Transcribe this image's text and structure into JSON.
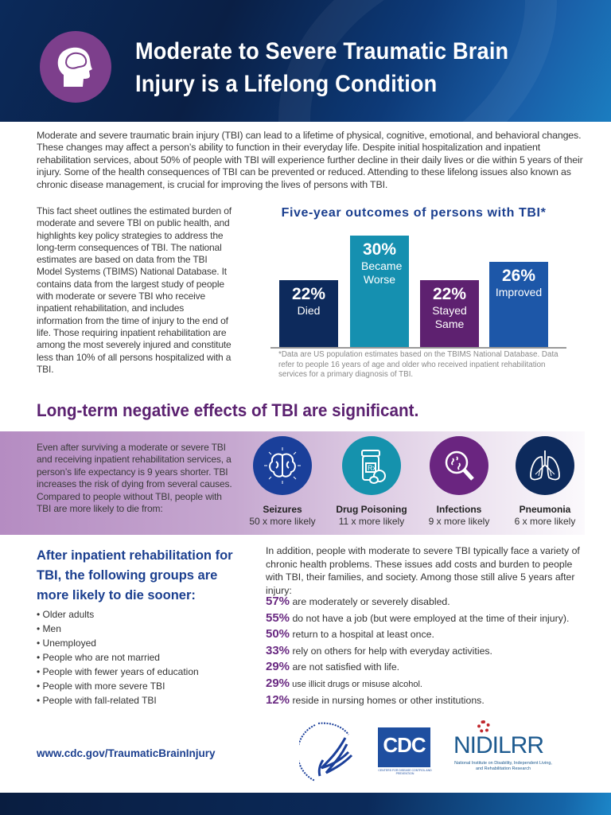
{
  "header": {
    "title_line1": "Moderate to Severe Traumatic Brain",
    "title_line2": "Injury is a Lifelong Condition",
    "icon": "head-brain-icon"
  },
  "intro": "Moderate and severe traumatic brain injury (TBI) can lead to a lifetime of physical, cognitive, emotional, and behavioral changes. These changes may affect a person’s ability to function in their everyday life. Despite initial hospitalization and inpatient rehabilitation services, about 50% of people with TBI will experience further decline in their daily lives or die within 5 years of their injury. Some of the health consequences of TBI can be prevented or reduced. Attending to these lifelong issues also known as chronic disease management, is crucial for improving the lives of persons with TBI.",
  "left_column": "This fact sheet outlines the estimated burden of moderate and severe TBI on public health, and highlights key policy strategies to address the long-term consequences of TBI. The national estimates are based on data from the TBI Model Systems (TBIMS) National Database. It contains data from the largest study of people with moderate or severe TBI who receive inpatient rehabilitation, and includes information from the time of injury to the end of life. Those requiring inpatient rehabilitation are among the most severely injured and constitute less than 10% of all persons hospitalized with a TBI.",
  "chart_data": {
    "type": "bar",
    "title": "Five-year outcomes of persons with TBI*",
    "categories": [
      "Died",
      "Became Worse",
      "Stayed Same",
      "Improved"
    ],
    "values": [
      22,
      30,
      22,
      26
    ],
    "value_labels": [
      "22%",
      "30%",
      "22%",
      "26%"
    ],
    "colors": [
      "#0d2a5c",
      "#1590b0",
      "#5e2170",
      "#1d57a8"
    ],
    "ylim": [
      0,
      30
    ],
    "footnote": "*Data are US population estimates based on the TBIMS National Database. Data refer to people 16 years of age and older who received inpatient rehabilitation services for a primary diagnosis of TBI."
  },
  "long_term": {
    "heading": "Long-term negative effects of TBI are significant.",
    "text": "Even after surviving a moderate or severe TBI and receiving inpatient rehabilitation services, a person’s life expectancy is 9 years shorter. TBI increases the risk of dying from several causes. Compared to people without TBI, people with TBI are more likely to die from:",
    "causes": [
      {
        "name": "Seizures",
        "likelihood": "50 x more likely",
        "icon": "brain-icon",
        "color": "#1a3f9a"
      },
      {
        "name": "Drug Poisoning",
        "likelihood": "11 x more likely",
        "icon": "pill-bottle-icon",
        "color": "#1592ad"
      },
      {
        "name": "Infections",
        "likelihood": "9 x more likely",
        "icon": "magnifier-germs-icon",
        "color": "#6a2580"
      },
      {
        "name": "Pneumonia",
        "likelihood": "6 x more likely",
        "icon": "lungs-icon",
        "color": "#0d2a5c"
      }
    ]
  },
  "after": {
    "heading": "After inpatient rehabilitation for TBI, the following groups are more likely to die sooner:",
    "groups": [
      "Older adults",
      "Men",
      "Unemployed",
      "People who are not married",
      "People with fewer years of education",
      "People with more severe TBI",
      "People with fall-related TBI"
    ]
  },
  "chronic": {
    "text": "In addition, people with moderate to severe TBI typically face a variety of chronic health problems. These issues add costs and burden to people with TBI, their families, and society. Among those still alive 5 years after injury:",
    "stats": [
      {
        "pct": "57%",
        "text": " are moderately or severely disabled."
      },
      {
        "pct": "55%",
        "text": "do not have a job (but were employed at the time of their injury)."
      },
      {
        "pct": "50%",
        "text": "return to a hospital at least once."
      },
      {
        "pct": "33%",
        "text": "rely on others for help with everyday activities."
      },
      {
        "pct": "29%",
        "text": "are not satisfied with life."
      },
      {
        "pct": "29%",
        "text": "use illicit drugs or misuse alcohol."
      },
      {
        "pct": "12%",
        "text": "reside in nursing homes or other institutions."
      }
    ]
  },
  "footer": {
    "url": "www.cdc.gov/TraumaticBrainInjury",
    "logos": [
      {
        "name": "HHS",
        "text": "DEPARTMENT OF HEALTH & HUMAN SERVICES · USA"
      },
      {
        "name": "CDC",
        "text": "CDC",
        "subtext": "CENTERS FOR DISEASE CONTROL AND PREVENTION"
      },
      {
        "name": "NIDILRR",
        "text": "NIDILRR",
        "subtext": "National Institute on Disability, Independent Living, and Rehabilitation Research"
      }
    ]
  }
}
